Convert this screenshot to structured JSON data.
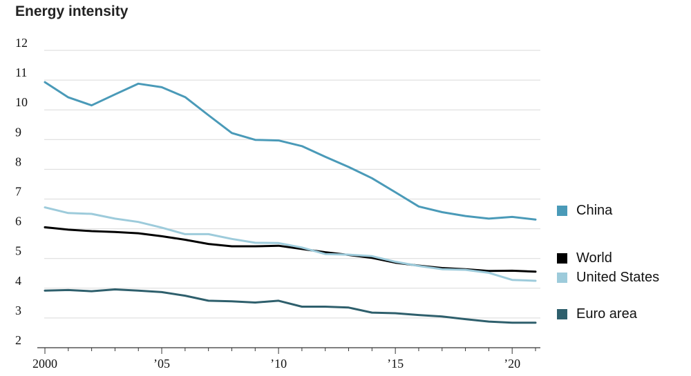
{
  "chart_data": {
    "type": "line",
    "title": "Energy intensity",
    "xlabel": "",
    "ylabel": "",
    "x": [
      2000,
      2001,
      2002,
      2003,
      2004,
      2005,
      2006,
      2007,
      2008,
      2009,
      2010,
      2011,
      2012,
      2013,
      2014,
      2015,
      2016,
      2017,
      2018,
      2019,
      2020,
      2021
    ],
    "xlim": [
      2000,
      2021
    ],
    "ylim": [
      2,
      12
    ],
    "x_ticks": [
      2000,
      2005,
      2010,
      2015,
      2020
    ],
    "x_tick_labels": [
      "2000",
      "’05",
      "’10",
      "’15",
      "’20"
    ],
    "y_ticks": [
      2,
      3,
      4,
      5,
      6,
      7,
      8,
      9,
      10,
      11,
      12
    ],
    "y_tick_labels": [
      "2",
      "3",
      "4",
      "5",
      "6",
      "7",
      "8",
      "9",
      "10",
      "11",
      "12"
    ],
    "grid": true,
    "legend_position": "right",
    "series": [
      {
        "name": "China",
        "color": "#4a9ab8",
        "values": [
          10.93,
          10.42,
          10.15,
          10.52,
          10.88,
          10.76,
          10.43,
          9.82,
          9.22,
          8.99,
          8.97,
          8.78,
          8.42,
          8.08,
          7.7,
          7.23,
          6.75,
          6.56,
          6.43,
          6.34,
          6.4,
          6.31
        ]
      },
      {
        "name": "World",
        "color": "#000000",
        "values": [
          6.05,
          5.97,
          5.92,
          5.89,
          5.85,
          5.75,
          5.63,
          5.49,
          5.41,
          5.41,
          5.43,
          5.32,
          5.21,
          5.12,
          5.02,
          4.86,
          4.76,
          4.68,
          4.64,
          4.58,
          4.59,
          4.56
        ]
      },
      {
        "name": "United States",
        "color": "#9dcbdb",
        "values": [
          6.72,
          6.53,
          6.5,
          6.34,
          6.23,
          6.04,
          5.82,
          5.82,
          5.66,
          5.53,
          5.52,
          5.37,
          5.15,
          5.13,
          5.08,
          4.89,
          4.75,
          4.64,
          4.62,
          4.52,
          4.28,
          4.25
        ]
      },
      {
        "name": "Euro area",
        "color": "#2e5f6c",
        "values": [
          3.92,
          3.94,
          3.9,
          3.96,
          3.92,
          3.87,
          3.75,
          3.58,
          3.56,
          3.52,
          3.58,
          3.38,
          3.38,
          3.35,
          3.18,
          3.16,
          3.1,
          3.05,
          2.96,
          2.88,
          2.84,
          2.84
        ]
      }
    ]
  }
}
